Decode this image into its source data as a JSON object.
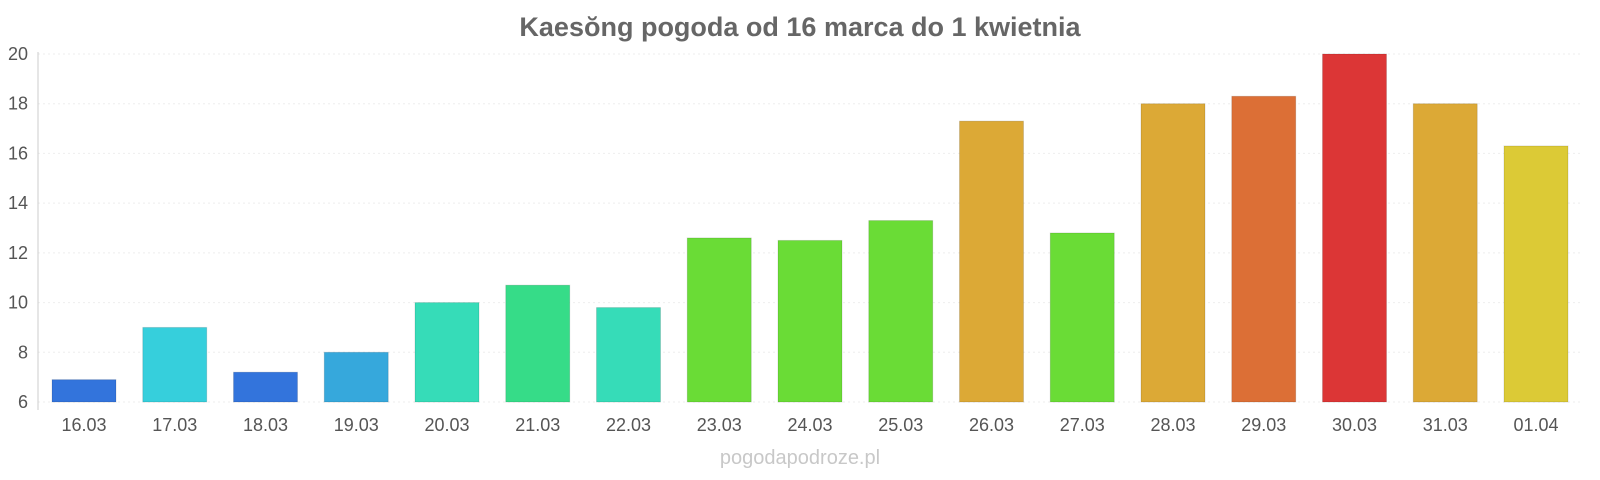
{
  "chart_data": {
    "type": "bar",
    "title": "Kaesŏng pogoda od 16 marca do 1 kwietnia",
    "categories": [
      "16.03",
      "17.03",
      "18.03",
      "19.03",
      "20.03",
      "21.03",
      "22.03",
      "23.03",
      "24.03",
      "25.03",
      "26.03",
      "27.03",
      "28.03",
      "29.03",
      "30.03",
      "31.03",
      "01.04"
    ],
    "values": [
      6.9,
      9.0,
      7.2,
      8.0,
      10.0,
      10.7,
      9.8,
      12.6,
      12.5,
      13.3,
      17.3,
      12.8,
      18.0,
      18.3,
      20.0,
      18.0,
      16.3
    ],
    "colors": [
      "#3374dc",
      "#36cfdc",
      "#3374dc",
      "#36a8dc",
      "#36dcb8",
      "#36dc88",
      "#36dcb8",
      "#6adc36",
      "#6adc36",
      "#6adc36",
      "#dca936",
      "#6adc36",
      "#dca936",
      "#dc6f36",
      "#dc3636",
      "#dca936",
      "#dcca36"
    ],
    "ylim": [
      6,
      20
    ],
    "yticks": [
      6,
      8,
      10,
      12,
      14,
      16,
      18,
      20
    ],
    "xlabel": "",
    "ylabel": "",
    "grid": true,
    "legend": "none"
  },
  "watermark": "pogodapodroze.pl"
}
